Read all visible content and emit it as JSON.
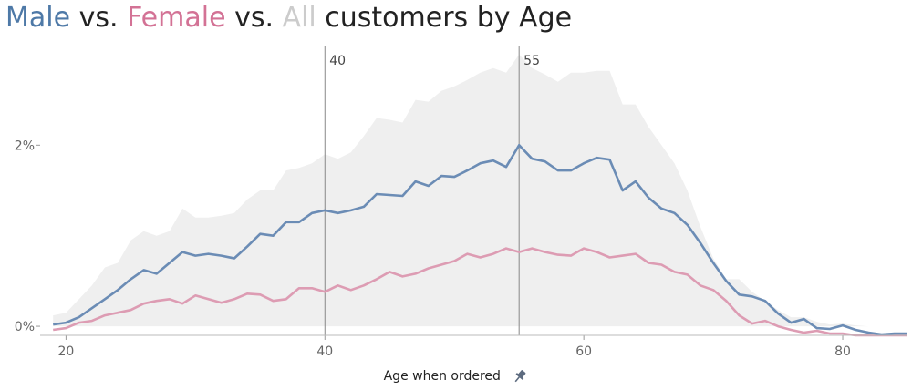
{
  "title": {
    "male_word": "Male",
    "sep1": " vs. ",
    "female_word": "Female",
    "sep2": " vs. ",
    "all_word": "All",
    "rest": " customers by Age"
  },
  "colors": {
    "male": "#6b8cb5",
    "female": "#dd9cb3",
    "all_area": "#efefef",
    "male_title": "#4e79a7",
    "female_title": "#d37295",
    "all_title": "#cccccc",
    "reference": "#888888"
  },
  "chart_data": {
    "type": "line",
    "xlabel": "Age when ordered",
    "ylabel": "",
    "xlim": [
      18,
      85
    ],
    "ylim": [
      -0.1,
      3.1
    ],
    "x_ticks": [
      "20",
      "40",
      "60",
      "80"
    ],
    "y_ticks": [
      "0%",
      "2%"
    ],
    "reference_lines": [
      {
        "x": 40,
        "label": "40"
      },
      {
        "x": 55,
        "label": "55"
      }
    ],
    "x": [
      19,
      20,
      21,
      22,
      23,
      24,
      25,
      26,
      27,
      28,
      29,
      30,
      31,
      32,
      33,
      34,
      35,
      36,
      37,
      38,
      39,
      40,
      41,
      42,
      43,
      44,
      45,
      46,
      47,
      48,
      49,
      50,
      51,
      52,
      53,
      54,
      55,
      56,
      57,
      58,
      59,
      60,
      61,
      62,
      63,
      64,
      65,
      66,
      67,
      68,
      69,
      70,
      71,
      72,
      73,
      74,
      75,
      76,
      77,
      78,
      79,
      80,
      81,
      82,
      83,
      84,
      85
    ],
    "series": [
      {
        "name": "All",
        "type": "area",
        "values": [
          0.12,
          0.15,
          0.3,
          0.45,
          0.65,
          0.7,
          0.95,
          1.05,
          1.0,
          1.05,
          1.3,
          1.2,
          1.2,
          1.22,
          1.25,
          1.4,
          1.5,
          1.5,
          1.72,
          1.75,
          1.8,
          1.9,
          1.85,
          1.92,
          2.1,
          2.3,
          2.28,
          2.25,
          2.5,
          2.48,
          2.6,
          2.65,
          2.72,
          2.8,
          2.85,
          2.8,
          3.0,
          2.85,
          2.78,
          2.7,
          2.8,
          2.8,
          2.82,
          2.82,
          2.45,
          2.45,
          2.2,
          2.0,
          1.8,
          1.5,
          1.1,
          0.75,
          0.52,
          0.52,
          0.38,
          0.28,
          0.18,
          0.1,
          0.1,
          0.05,
          0.02,
          0.03,
          0.01,
          0.0,
          0.0,
          0.0,
          0.0
        ]
      },
      {
        "name": "Male",
        "type": "line",
        "values": [
          0.02,
          0.04,
          0.1,
          0.2,
          0.3,
          0.4,
          0.52,
          0.62,
          0.58,
          0.7,
          0.82,
          0.78,
          0.8,
          0.78,
          0.75,
          0.88,
          1.02,
          1.0,
          1.15,
          1.15,
          1.25,
          1.28,
          1.25,
          1.28,
          1.32,
          1.46,
          1.45,
          1.44,
          1.6,
          1.55,
          1.66,
          1.65,
          1.72,
          1.8,
          1.83,
          1.76,
          2.0,
          1.85,
          1.82,
          1.72,
          1.72,
          1.8,
          1.86,
          1.84,
          1.5,
          1.6,
          1.42,
          1.3,
          1.25,
          1.12,
          0.92,
          0.7,
          0.5,
          0.35,
          0.33,
          0.28,
          0.14,
          0.04,
          0.08,
          -0.02,
          -0.03,
          0.01,
          -0.04,
          -0.07,
          -0.09,
          -0.08,
          -0.08
        ]
      },
      {
        "name": "Female",
        "type": "line",
        "values": [
          -0.04,
          -0.02,
          0.04,
          0.06,
          0.12,
          0.15,
          0.18,
          0.25,
          0.28,
          0.3,
          0.25,
          0.34,
          0.3,
          0.26,
          0.3,
          0.36,
          0.35,
          0.28,
          0.3,
          0.42,
          0.42,
          0.38,
          0.45,
          0.4,
          0.45,
          0.52,
          0.6,
          0.55,
          0.58,
          0.64,
          0.68,
          0.72,
          0.8,
          0.76,
          0.8,
          0.86,
          0.82,
          0.86,
          0.82,
          0.79,
          0.78,
          0.86,
          0.82,
          0.76,
          0.78,
          0.8,
          0.7,
          0.68,
          0.6,
          0.57,
          0.45,
          0.4,
          0.28,
          0.12,
          0.03,
          0.06,
          0.0,
          -0.04,
          -0.07,
          -0.05,
          -0.08,
          -0.08,
          -0.1,
          -0.1,
          -0.1,
          -0.1,
          -0.1
        ]
      }
    ]
  }
}
